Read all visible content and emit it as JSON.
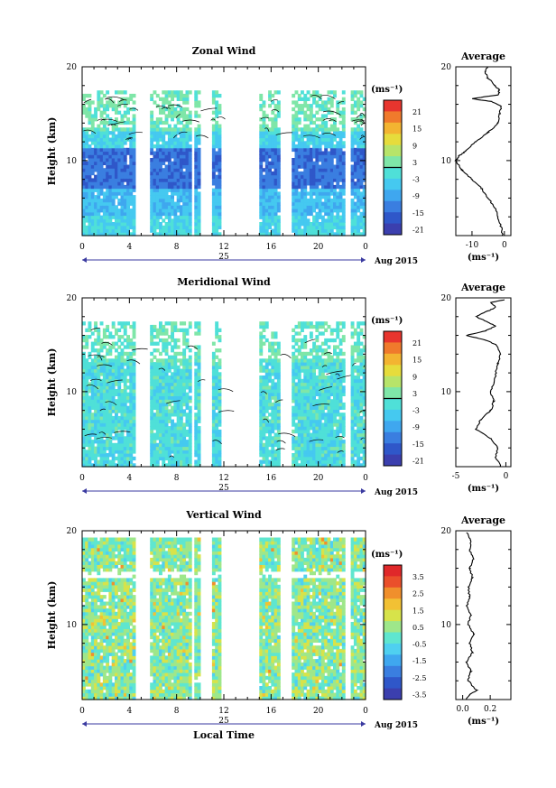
{
  "chart_data": [
    {
      "type": "heatmap",
      "title": "Zonal Wind",
      "ylabel": "Height (km)",
      "xlim": [
        0,
        24
      ],
      "ylim": [
        2,
        20
      ],
      "x_ticks": [
        "0",
        "4",
        "8",
        "12",
        "16",
        "20",
        "0"
      ],
      "y_ticks": [
        "10",
        "20"
      ],
      "date_label": "25",
      "date_suffix": "Aug 2015",
      "colorbar": {
        "unit": "(ms⁻¹)",
        "ticks": [
          "21",
          "15",
          "9",
          "3",
          "-3",
          "-9",
          "-15",
          "-21"
        ]
      },
      "data_gaps_hours": [
        [
          4.5,
          5.8
        ],
        [
          9.2,
          9.5
        ],
        [
          10.1,
          10.9
        ],
        [
          11.8,
          15.0
        ],
        [
          16.8,
          17.8
        ],
        [
          22.3,
          22.8
        ]
      ],
      "profile": {
        "title": "Average",
        "xlabel": "(ms⁻¹)",
        "x_ticks": [
          "-10",
          "0"
        ],
        "y_ticks": [
          "10",
          "20"
        ],
        "xlim": [
          -15,
          2
        ],
        "points": [
          [
            -0.5,
            2
          ],
          [
            -1,
            3
          ],
          [
            -2,
            4
          ],
          [
            -3,
            5
          ],
          [
            -5,
            6
          ],
          [
            -7,
            7
          ],
          [
            -10,
            8
          ],
          [
            -13,
            9
          ],
          [
            -15,
            10
          ],
          [
            -14,
            10.5
          ],
          [
            -12,
            11
          ],
          [
            -9,
            12
          ],
          [
            -5,
            13
          ],
          [
            -2,
            14
          ],
          [
            -1.5,
            15
          ],
          [
            -1,
            15.8
          ],
          [
            -4,
            16.3
          ],
          [
            -10,
            16.6
          ],
          [
            -2,
            17
          ],
          [
            -1.5,
            17.5
          ],
          [
            -3,
            18
          ],
          [
            -5,
            18.8
          ],
          [
            -6,
            19.5
          ],
          [
            -5,
            20
          ]
        ]
      }
    },
    {
      "type": "heatmap",
      "title": "Meridional Wind",
      "ylabel": "Height (km)",
      "xlim": [
        0,
        24
      ],
      "ylim": [
        2,
        20
      ],
      "x_ticks": [
        "0",
        "4",
        "8",
        "12",
        "16",
        "20",
        "0"
      ],
      "y_ticks": [
        "10",
        "20"
      ],
      "date_label": "25",
      "date_suffix": "Aug 2015",
      "colorbar": {
        "unit": "(ms⁻¹)",
        "ticks": [
          "21",
          "15",
          "9",
          "3",
          "-3",
          "-9",
          "-15",
          "-21"
        ]
      },
      "data_gaps_hours": [
        [
          4.5,
          5.8
        ],
        [
          9.2,
          9.5
        ],
        [
          10.1,
          10.9
        ],
        [
          11.8,
          15.0
        ],
        [
          16.8,
          17.8
        ],
        [
          22.3,
          22.8
        ]
      ],
      "profile": {
        "title": "Average",
        "xlabel": "(ms⁻¹)",
        "x_ticks": [
          "-5",
          "0"
        ],
        "y_ticks": [
          "10",
          "20"
        ],
        "xlim": [
          -5,
          0.5
        ],
        "points": [
          [
            -0.5,
            2
          ],
          [
            -1,
            3
          ],
          [
            -0.8,
            4
          ],
          [
            -1.5,
            5
          ],
          [
            -3,
            6
          ],
          [
            -2.5,
            7
          ],
          [
            -1.5,
            8
          ],
          [
            -1.2,
            9
          ],
          [
            -1.5,
            10
          ],
          [
            -1.2,
            11
          ],
          [
            -1,
            12
          ],
          [
            -0.8,
            13
          ],
          [
            -0.5,
            14
          ],
          [
            -1,
            15
          ],
          [
            -2,
            15.5
          ],
          [
            -4,
            16
          ],
          [
            -2,
            16.5
          ],
          [
            -1,
            17
          ],
          [
            -2,
            17.5
          ],
          [
            -3,
            18
          ],
          [
            -2,
            18.5
          ],
          [
            -1,
            19
          ],
          [
            -1.5,
            19.5
          ],
          [
            -0.2,
            19.8
          ]
        ]
      }
    },
    {
      "type": "heatmap",
      "title": "Vertical Wind",
      "ylabel": "Height (km)",
      "xlabel": "Local Time",
      "xlim": [
        0,
        24
      ],
      "ylim": [
        2,
        20
      ],
      "x_ticks": [
        "0",
        "4",
        "8",
        "12",
        "16",
        "20",
        "0"
      ],
      "y_ticks": [
        "10",
        "20"
      ],
      "date_label": "25",
      "date_suffix": "Aug 2015",
      "colorbar": {
        "unit": "(ms⁻¹)",
        "ticks": [
          "3.5",
          "2.5",
          "1.5",
          "0.5",
          "-0.5",
          "-1.5",
          "-2.5",
          "-3.5"
        ]
      },
      "data_gaps_hours": [
        [
          4.5,
          5.8
        ],
        [
          9.2,
          9.5
        ],
        [
          10.1,
          10.9
        ],
        [
          11.8,
          15.0
        ],
        [
          16.8,
          17.8
        ],
        [
          22.3,
          22.8
        ]
      ],
      "profile": {
        "title": "Average",
        "xlabel": "(ms⁻¹)",
        "x_ticks": [
          "0.0",
          "0.2"
        ],
        "y_ticks": [
          "10",
          "20"
        ],
        "xlim": [
          -0.05,
          0.35
        ],
        "points": [
          [
            0.02,
            2
          ],
          [
            0.05,
            2.5
          ],
          [
            0.1,
            3
          ],
          [
            0.04,
            4
          ],
          [
            0.06,
            5
          ],
          [
            0.03,
            6
          ],
          [
            0.07,
            7
          ],
          [
            0.05,
            8
          ],
          [
            0.08,
            9
          ],
          [
            0.04,
            10
          ],
          [
            0.06,
            11
          ],
          [
            0.03,
            12
          ],
          [
            0.05,
            13
          ],
          [
            0.04,
            14
          ],
          [
            0.07,
            15
          ],
          [
            0.05,
            16
          ],
          [
            0.08,
            17
          ],
          [
            0.05,
            18
          ],
          [
            0.06,
            19
          ],
          [
            0.03,
            19.8
          ]
        ]
      }
    }
  ]
}
